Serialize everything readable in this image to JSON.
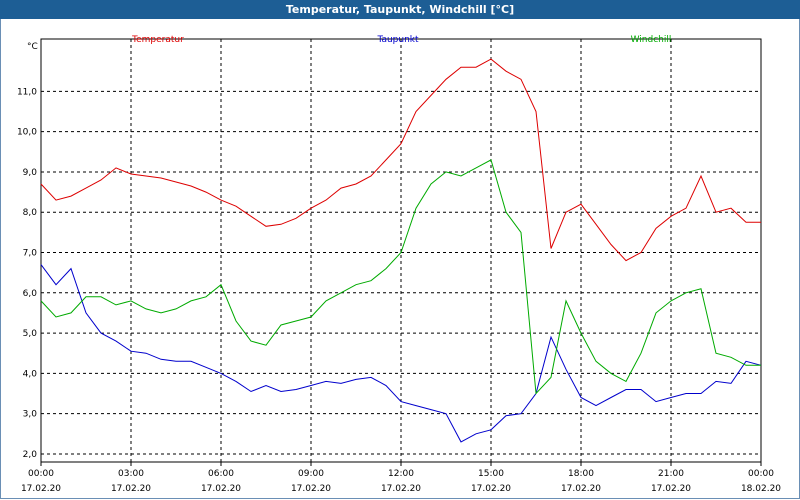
{
  "window": {
    "title": "Temperatur, Taupunkt, Windchill [°C]"
  },
  "chart_data": {
    "type": "line",
    "unit": "°C",
    "ylim": [
      1.8,
      12.3
    ],
    "y_ticks": [
      "2,0",
      "3,0",
      "4,0",
      "5,0",
      "6,0",
      "7,0",
      "8,0",
      "9,0",
      "10,0",
      "11,0"
    ],
    "x_tick_times": [
      "00:00",
      "03:00",
      "06:00",
      "09:00",
      "12:00",
      "15:00",
      "18:00",
      "21:00",
      "00:00"
    ],
    "x_tick_dates": [
      "17.02.20",
      "17.02.20",
      "17.02.20",
      "17.02.20",
      "17.02.20",
      "17.02.20",
      "17.02.20",
      "17.02.20",
      "18.02.20"
    ],
    "grid": true,
    "x_hours": [
      0,
      0.5,
      1,
      1.5,
      2,
      2.5,
      3,
      3.5,
      4,
      4.5,
      5,
      5.5,
      6,
      6.5,
      7,
      7.5,
      8,
      8.5,
      9,
      9.5,
      10,
      10.5,
      11,
      11.5,
      12,
      12.5,
      13,
      13.5,
      14,
      14.5,
      15,
      15.5,
      16,
      16.5,
      17,
      17.5,
      18,
      18.5,
      19,
      19.5,
      20,
      20.5,
      21,
      21.5,
      22,
      22.5,
      23,
      23.5,
      24
    ],
    "series": [
      {
        "name": "Temperatur",
        "color": "#dd0000",
        "values": [
          8.7,
          8.3,
          8.4,
          8.6,
          8.8,
          9.1,
          8.95,
          8.9,
          8.85,
          8.75,
          8.65,
          8.5,
          8.3,
          8.15,
          7.9,
          7.65,
          7.7,
          7.85,
          8.1,
          8.3,
          8.6,
          8.7,
          8.9,
          9.3,
          9.7,
          10.5,
          10.9,
          11.3,
          11.6,
          11.6,
          11.8,
          11.5,
          11.3,
          10.5,
          7.1,
          8.0,
          8.2,
          7.7,
          7.2,
          6.8,
          7.0,
          7.6,
          7.9,
          8.1,
          8.9,
          8.0,
          8.1,
          7.75,
          7.75
        ]
      },
      {
        "name": "Taupunkt",
        "color": "#0000cc",
        "values": [
          6.7,
          6.2,
          6.6,
          5.5,
          5.0,
          4.8,
          4.55,
          4.5,
          4.35,
          4.3,
          4.3,
          4.15,
          4.0,
          3.8,
          3.55,
          3.7,
          3.55,
          3.6,
          3.7,
          3.8,
          3.75,
          3.85,
          3.9,
          3.7,
          3.3,
          3.2,
          3.1,
          3.0,
          2.3,
          2.5,
          2.6,
          2.95,
          3.0,
          3.5,
          4.9,
          4.1,
          3.4,
          3.2,
          3.4,
          3.6,
          3.6,
          3.3,
          3.4,
          3.5,
          3.5,
          3.8,
          3.75,
          4.3,
          4.2
        ]
      },
      {
        "name": "Windchill",
        "color": "#00aa00",
        "values": [
          5.8,
          5.4,
          5.5,
          5.9,
          5.9,
          5.7,
          5.8,
          5.6,
          5.5,
          5.6,
          5.8,
          5.9,
          6.2,
          5.3,
          4.8,
          4.7,
          5.2,
          5.3,
          5.4,
          5.8,
          6.0,
          6.2,
          6.3,
          6.6,
          7.0,
          8.1,
          8.7,
          9.0,
          8.9,
          9.1,
          9.3,
          8.0,
          7.5,
          3.5,
          3.9,
          5.8,
          5.0,
          4.3,
          4.0,
          3.8,
          4.5,
          5.5,
          5.8,
          6.0,
          6.1,
          4.5,
          4.4,
          4.2,
          4.2
        ]
      }
    ]
  }
}
